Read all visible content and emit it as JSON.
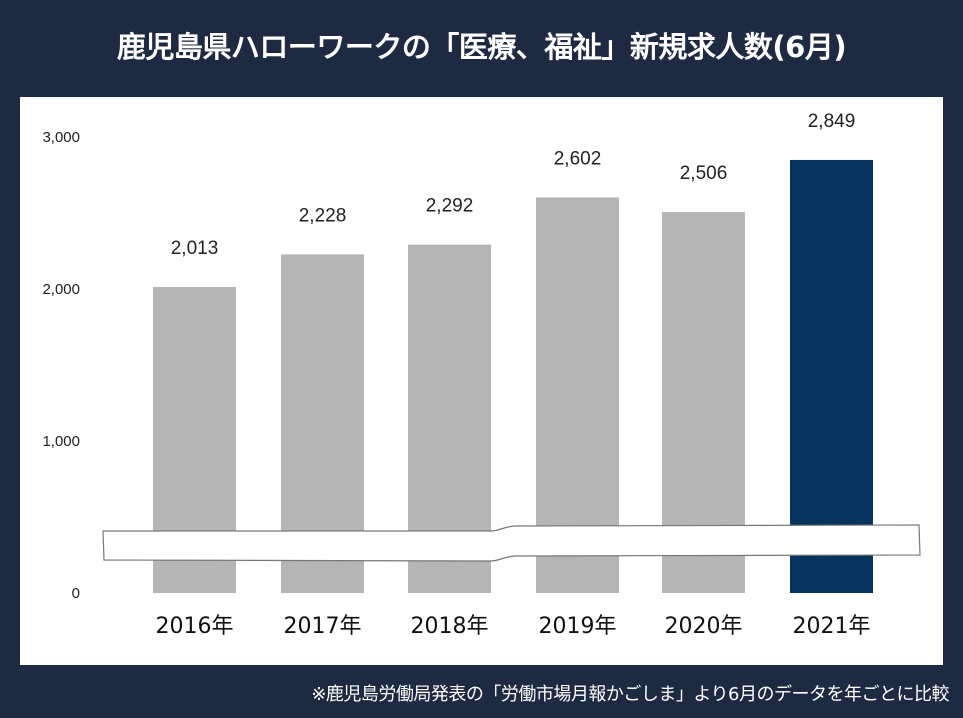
{
  "title": "鹿児島県ハローワークの「医療、福祉」新規求人数(6月)",
  "footnote": "※鹿児島労働局発表の「労働市場月報かごしま」より6月のデータを年ごとに比較",
  "colors": {
    "background": "#1e2942",
    "bar_default": "#b5b5b5",
    "bar_highlight": "#07335f"
  },
  "chart_data": {
    "type": "bar",
    "title": "鹿児島県ハローワークの「医療、福祉」新規求人数(6月)",
    "categories": [
      "2016年",
      "2017年",
      "2018年",
      "2019年",
      "2020年",
      "2021年"
    ],
    "values": [
      2013,
      2228,
      2292,
      2602,
      2506,
      2849
    ],
    "data_labels": [
      "2,013",
      "2,228",
      "2,292",
      "2,602",
      "2,506",
      "2,849"
    ],
    "highlight": "2021年",
    "ylim": [
      0,
      3000
    ],
    "yticks": [
      0,
      1000,
      2000,
      3000
    ],
    "ytick_labels": [
      "0",
      "1,000",
      "2,000",
      "3,000"
    ],
    "axis_break": true,
    "grid": false,
    "xlabel": "",
    "ylabel": ""
  }
}
